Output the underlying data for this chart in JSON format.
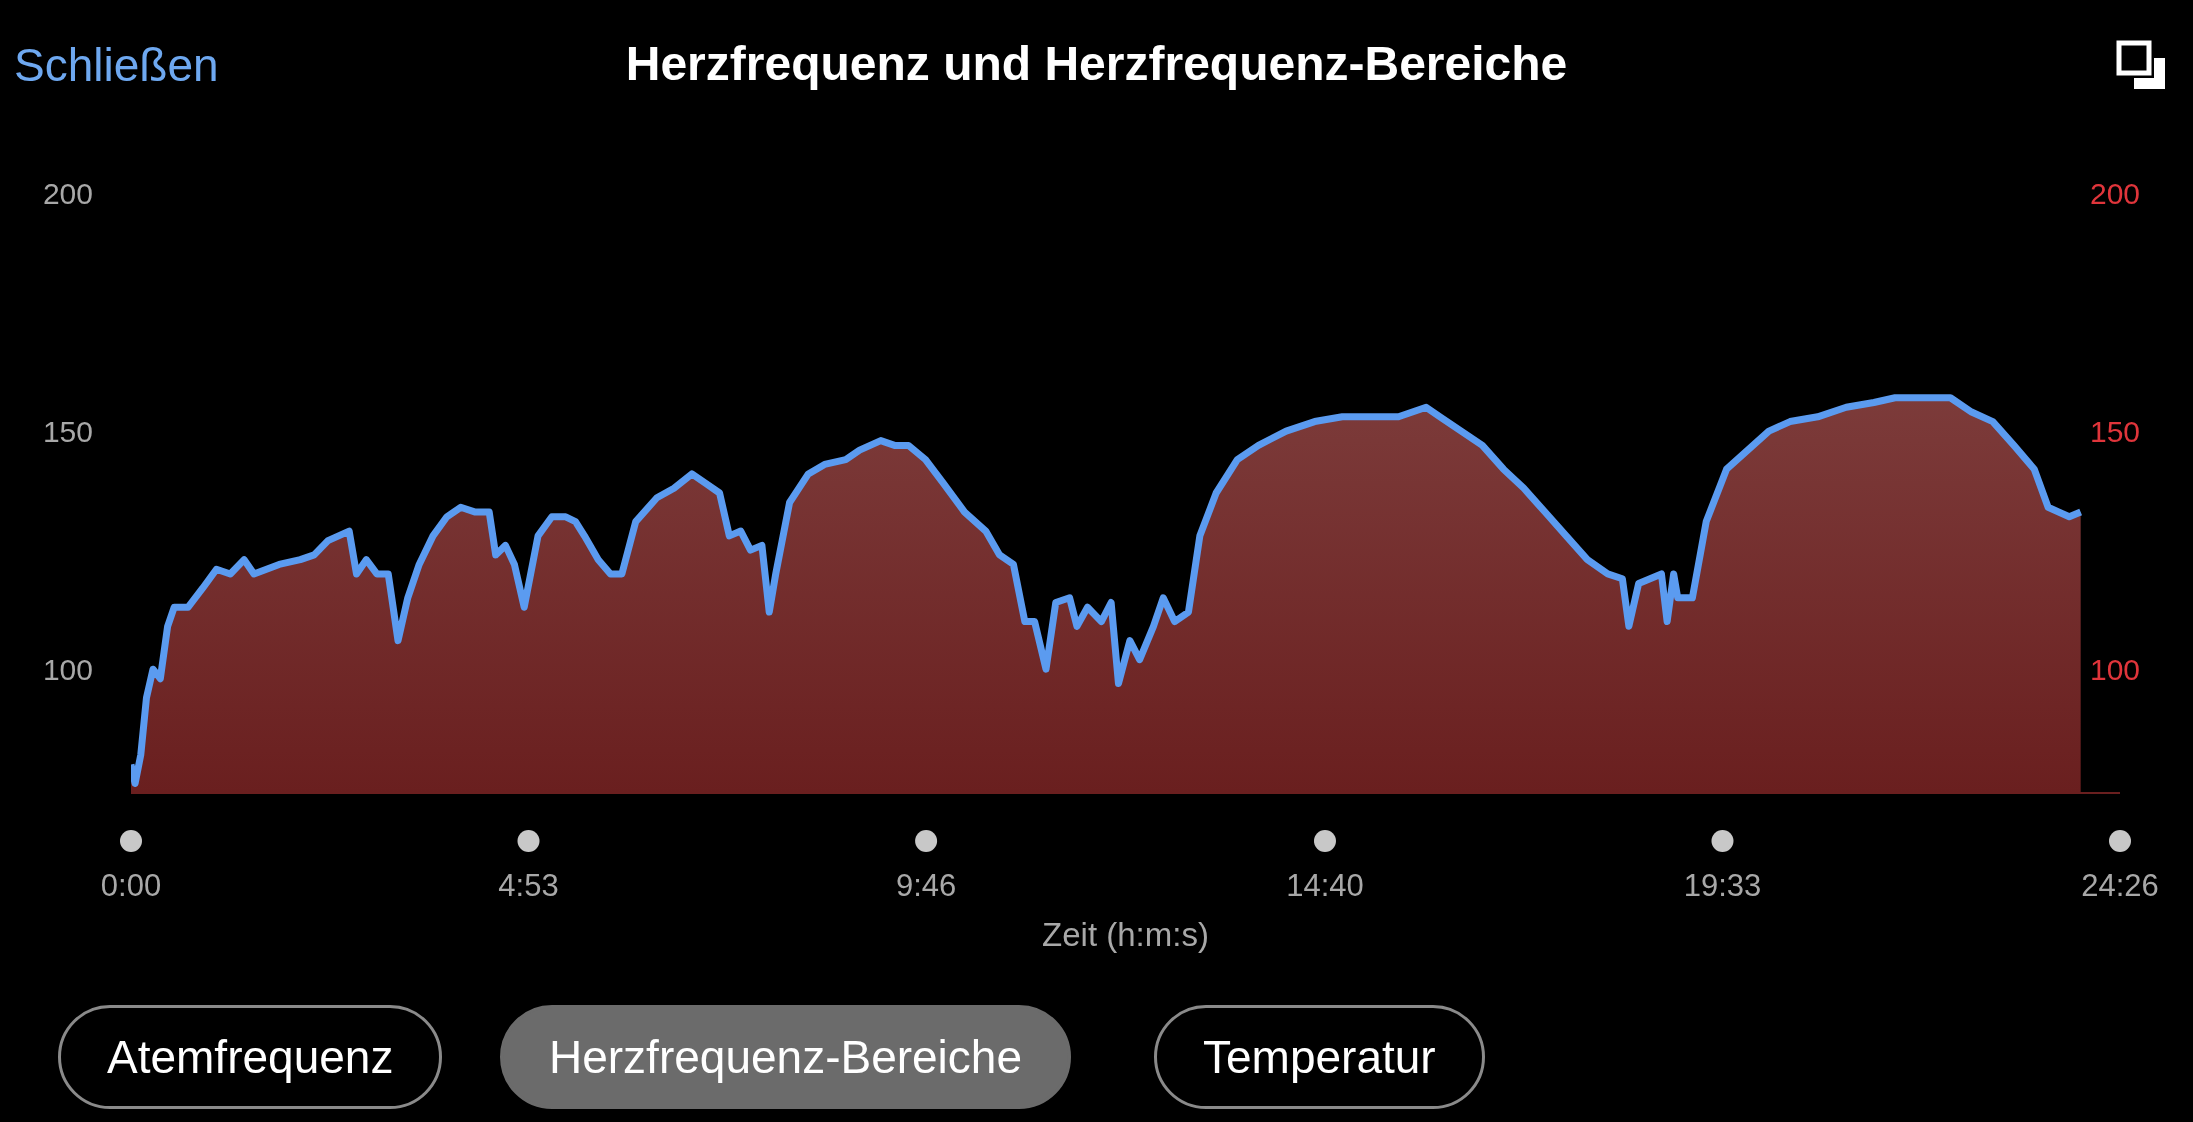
{
  "chart_data": {
    "type": "area",
    "title": "Herzfrequenz und Herzfrequenz-Bereiche",
    "xlabel": "Zeit (h:m:s)",
    "annotations": [
      "Schließen",
      "Atemfrequenz",
      "Herzfrequenz-Bereiche",
      "Temperatur"
    ],
    "x": [
      0,
      0.05,
      0.12,
      0.19,
      0.27,
      0.36,
      0.45,
      0.53,
      0.7,
      0.88,
      1.05,
      1.22,
      1.39,
      1.51,
      1.82,
      2.08,
      2.25,
      2.42,
      2.68,
      2.77,
      2.89,
      3.02,
      3.16,
      3.28,
      3.4,
      3.54,
      3.71,
      3.88,
      4.05,
      4.23,
      4.4,
      4.48,
      4.6,
      4.71,
      4.83,
      5.0,
      5.17,
      5.34,
      5.46,
      5.57,
      5.74,
      5.89,
      6.03,
      6.2,
      6.46,
      6.67,
      6.89,
      7.06,
      7.23,
      7.35,
      7.49,
      7.61,
      7.75,
      7.84,
      7.92,
      8.09,
      8.32,
      8.52,
      8.78,
      8.95,
      9.21,
      9.38,
      9.55,
      9.76,
      9.98,
      10.24,
      10.5,
      10.67,
      10.84,
      10.98,
      11.1,
      11.24,
      11.36,
      11.53,
      11.62,
      11.75,
      11.92,
      12.04,
      12.13,
      12.27,
      12.39,
      12.56,
      12.68,
      12.82,
      12.99,
      13.13,
      13.33,
      13.59,
      13.85,
      14.19,
      14.54,
      14.88,
      15.22,
      15.57,
      15.91,
      16.08,
      16.34,
      16.6,
      16.86,
      17.11,
      17.37,
      17.63,
      17.89,
      18.14,
      18.32,
      18.4,
      18.52,
      18.66,
      18.8,
      18.87,
      18.95,
      19.0,
      19.18,
      19.35,
      19.6,
      19.86,
      20.12,
      20.38,
      20.72,
      21.07,
      21.41,
      21.67,
      21.84,
      22.01,
      22.35,
      22.61,
      22.87,
      23.13,
      23.38,
      23.55,
      23.81,
      23.95
    ],
    "series": [
      {
        "color": "#5b9bf0",
        "values": [
          80,
          76,
          82,
          94,
          100,
          98,
          109,
          113,
          113,
          117,
          121,
          120,
          123,
          120,
          122,
          123,
          124,
          127,
          129,
          120,
          123,
          120,
          120,
          106,
          115,
          122,
          128,
          132,
          134,
          133,
          133,
          124,
          126,
          122,
          113,
          128,
          132,
          132,
          131,
          128,
          123,
          120,
          120,
          131,
          136,
          138,
          141,
          139,
          137,
          128,
          129,
          125,
          126,
          112,
          120,
          135,
          141,
          143,
          144,
          146,
          148,
          147,
          147,
          144,
          139,
          133,
          129,
          124,
          122,
          110,
          110,
          100,
          114,
          115,
          109,
          113,
          110,
          114,
          97,
          106,
          102,
          109,
          115,
          110,
          112,
          128,
          137,
          144,
          147,
          150,
          152,
          153,
          153,
          153,
          155,
          153,
          150,
          147,
          142,
          138,
          133,
          128,
          123,
          120,
          119,
          109,
          118,
          119,
          120,
          110,
          120,
          115,
          115,
          131,
          142,
          146,
          150,
          152,
          153,
          155,
          156,
          157,
          157,
          157,
          157,
          154,
          152,
          147,
          142,
          134,
          132,
          133
        ]
      }
    ],
    "xlim": [
      0,
      24.433
    ],
    "xticks": [
      {
        "value": 0,
        "label": "0:00"
      },
      {
        "value": 4.883,
        "label": "4:53"
      },
      {
        "value": 9.767,
        "label": "9:46"
      },
      {
        "value": 14.667,
        "label": "14:40"
      },
      {
        "value": 19.55,
        "label": "19:33"
      },
      {
        "value": 24.433,
        "label": "24:26"
      }
    ],
    "ylim": [
      74,
      200
    ],
    "yticks": [
      100,
      150,
      200
    ],
    "y2lim": [
      74,
      200
    ],
    "y2ticks": [
      100,
      150,
      200
    ],
    "grid": false,
    "legend": false
  }
}
